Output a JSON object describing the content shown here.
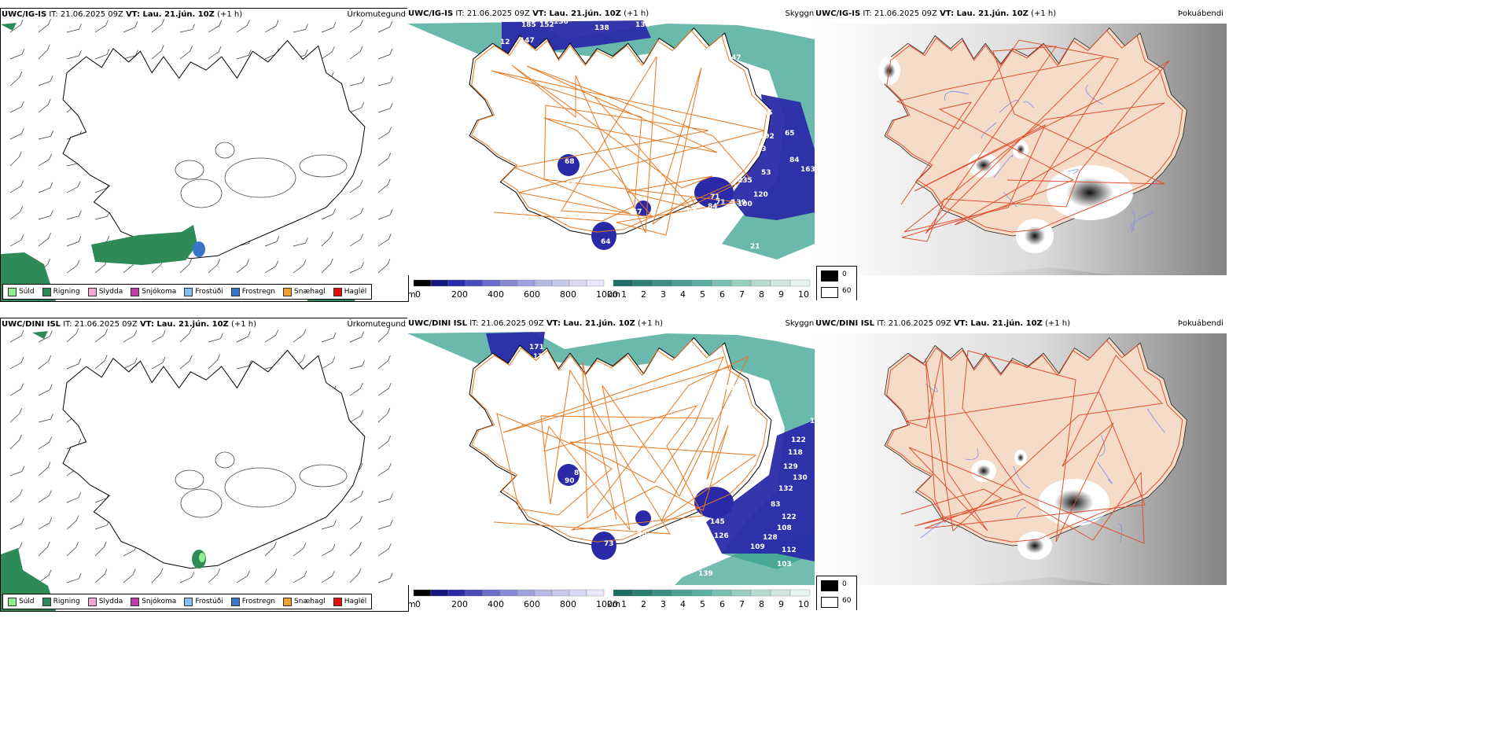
{
  "panels": [
    {
      "id": "p1",
      "header": {
        "model": "UWC/IG-IS",
        "it": "IT: 21.06.2025 09Z",
        "vt": "VT: Lau. 21.jún. 10Z",
        "lead": "(+1 h)"
      },
      "title": "Úrkomutegund"
    },
    {
      "id": "p2",
      "header": {
        "model": "UWC/IG-IS",
        "it": "IT: 21.06.2025 09Z",
        "vt": "VT: Lau. 21.jún. 10Z",
        "lead": "(+1 h)"
      },
      "title": "Skyggni"
    },
    {
      "id": "p3",
      "header": {
        "model": "UWC/IG-IS",
        "it": "IT: 21.06.2025 09Z",
        "vt": "VT: Lau. 21.jún. 10Z",
        "lead": "(+1 h)"
      },
      "title": "Þokuábendi"
    },
    {
      "id": "p4",
      "header": {
        "model": "UWC/DINI ISL",
        "it": "IT: 21.06.2025 09Z",
        "vt": "VT: Lau. 21.jún. 10Z",
        "lead": "(+1 h)"
      },
      "title": "Úrkomutegund"
    },
    {
      "id": "p5",
      "header": {
        "model": "UWC/DINI ISL",
        "it": "IT: 21.06.2025 09Z",
        "vt": "VT: Lau. 21.jún. 10Z",
        "lead": "(+1 h)"
      },
      "title": "Skyggni"
    },
    {
      "id": "p6",
      "header": {
        "model": "UWC/DINI ISL",
        "it": "IT: 21.06.2025 09Z",
        "vt": "VT: Lau. 21.jún. 10Z",
        "lead": "(+1 h)"
      },
      "title": "Þokuábendi"
    }
  ],
  "precip_legend": [
    {
      "label": "Súld",
      "color": "#90ee90"
    },
    {
      "label": "Rigning",
      "color": "#2e8b57"
    },
    {
      "label": "Slydda",
      "color": "#f4a6d4"
    },
    {
      "label": "Snjókoma",
      "color": "#c03ca8"
    },
    {
      "label": "Frostúði",
      "color": "#87bef0"
    },
    {
      "label": "Frostregn",
      "color": "#3a76c8"
    },
    {
      "label": "Snæhagl",
      "color": "#f0a030"
    },
    {
      "label": "Haglél",
      "color": "#e01010"
    }
  ],
  "ceiling_scale": {
    "unit": "m",
    "ticks": [
      "0",
      "200",
      "400",
      "600",
      "800",
      "1000"
    ]
  },
  "visibility_scale": {
    "unit": "km",
    "ticks": [
      "1",
      "2",
      "3",
      "4",
      "5",
      "6",
      "7",
      "8",
      "9",
      "10"
    ]
  },
  "fog_scale": {
    "ticks": [
      "0",
      "60"
    ]
  },
  "labels_p2": [
    "185",
    "152",
    "136",
    "138",
    "134",
    "147",
    "12",
    "47",
    "65",
    "65",
    "192",
    "93",
    "84",
    "163",
    "235",
    "53",
    "120",
    "100",
    "139",
    "68",
    "65",
    "67",
    "96",
    "71",
    "84",
    "71",
    "64",
    "32",
    "21",
    "25"
  ],
  "labels_p5": [
    "171",
    "170",
    "173",
    "81",
    "105",
    "122",
    "118",
    "129",
    "130",
    "132",
    "83",
    "122",
    "108",
    "128",
    "109",
    "112",
    "103",
    "103",
    "139",
    "145",
    "126",
    "92",
    "45",
    "80",
    "88",
    "90",
    "73",
    "31"
  ],
  "colors": {
    "land": "#f5dcc8",
    "roads": "#e87820",
    "coast": "#000000",
    "ceiling": "#2a2aa8",
    "visibility": "#3aa090",
    "fog_dark": "#202020"
  }
}
